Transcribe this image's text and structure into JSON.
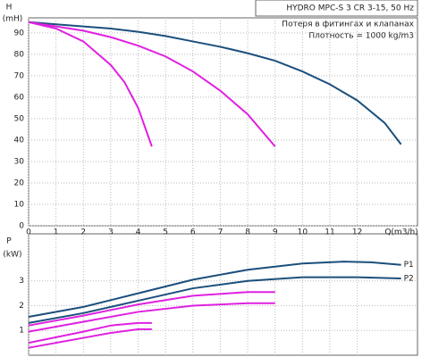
{
  "chart_data": [
    {
      "type": "line",
      "title": "HYDRO MPC-S 3 CR 3-15, 50 Hz",
      "annotations": [
        "Потеря в фитингах и клапанах",
        "Плотность = 1000 kg/m3"
      ],
      "ylabel": [
        "H",
        "(mH)"
      ],
      "xlabel": "Q(m3/h)",
      "xlim": [
        0,
        14.2
      ],
      "xticks": [
        0,
        1,
        2,
        3,
        4,
        5,
        6,
        7,
        8,
        9,
        10,
        11,
        12
      ],
      "ylim": [
        0,
        97
      ],
      "yticks": [
        0,
        10,
        20,
        30,
        40,
        50,
        60,
        70,
        80,
        90
      ],
      "grid": true,
      "series": [
        {
          "color": "#1b4f7c",
          "x": [
            0,
            1,
            2,
            3,
            4,
            5,
            6,
            7,
            8,
            9,
            10,
            11,
            12,
            13,
            13.6
          ],
          "values": [
            95,
            94,
            93,
            92,
            90.5,
            88.5,
            86,
            83.5,
            80.5,
            77,
            72,
            66,
            58.5,
            48,
            38
          ]
        },
        {
          "color": "#e020e0",
          "x": [
            0,
            2,
            3,
            4,
            5,
            6,
            7,
            8,
            9
          ],
          "values": [
            95,
            91,
            88,
            84,
            79,
            72,
            63,
            52,
            37
          ]
        },
        {
          "color": "#e020e0",
          "x": [
            0,
            1,
            2,
            3,
            3.5,
            4,
            4.5
          ],
          "values": [
            95,
            92,
            86,
            75,
            67,
            55,
            37
          ]
        }
      ]
    },
    {
      "type": "line",
      "ylabel": [
        "P",
        "(kW)"
      ],
      "xlim": [
        0,
        14.2
      ],
      "ylim": [
        0,
        4.9
      ],
      "yticks": [
        1,
        2,
        3
      ],
      "grid": true,
      "series": [
        {
          "name": "P1",
          "color": "#1b4f7c",
          "x": [
            0,
            2,
            4,
            6,
            8,
            10,
            11.5,
            12.5,
            13.6
          ],
          "values": [
            1.55,
            1.95,
            2.5,
            3.05,
            3.45,
            3.7,
            3.78,
            3.75,
            3.65
          ]
        },
        {
          "name": "P2",
          "color": "#1b4f7c",
          "x": [
            0,
            2,
            4,
            6,
            8,
            10,
            12,
            13.6
          ],
          "values": [
            1.3,
            1.7,
            2.2,
            2.7,
            3.0,
            3.15,
            3.15,
            3.1
          ]
        },
        {
          "color": "#e020e0",
          "x": [
            0,
            2,
            4,
            6,
            8,
            9
          ],
          "values": [
            1.2,
            1.6,
            2.05,
            2.4,
            2.55,
            2.55
          ]
        },
        {
          "color": "#e020e0",
          "x": [
            0,
            2,
            4,
            6,
            8,
            9
          ],
          "values": [
            0.95,
            1.35,
            1.75,
            2.0,
            2.1,
            2.1
          ]
        },
        {
          "color": "#e020e0",
          "x": [
            0,
            2,
            3,
            4,
            4.5
          ],
          "values": [
            0.5,
            0.95,
            1.2,
            1.3,
            1.3
          ]
        },
        {
          "color": "#e020e0",
          "x": [
            0,
            2,
            3,
            4,
            4.5
          ],
          "values": [
            0.3,
            0.7,
            0.9,
            1.05,
            1.05
          ]
        }
      ]
    }
  ]
}
